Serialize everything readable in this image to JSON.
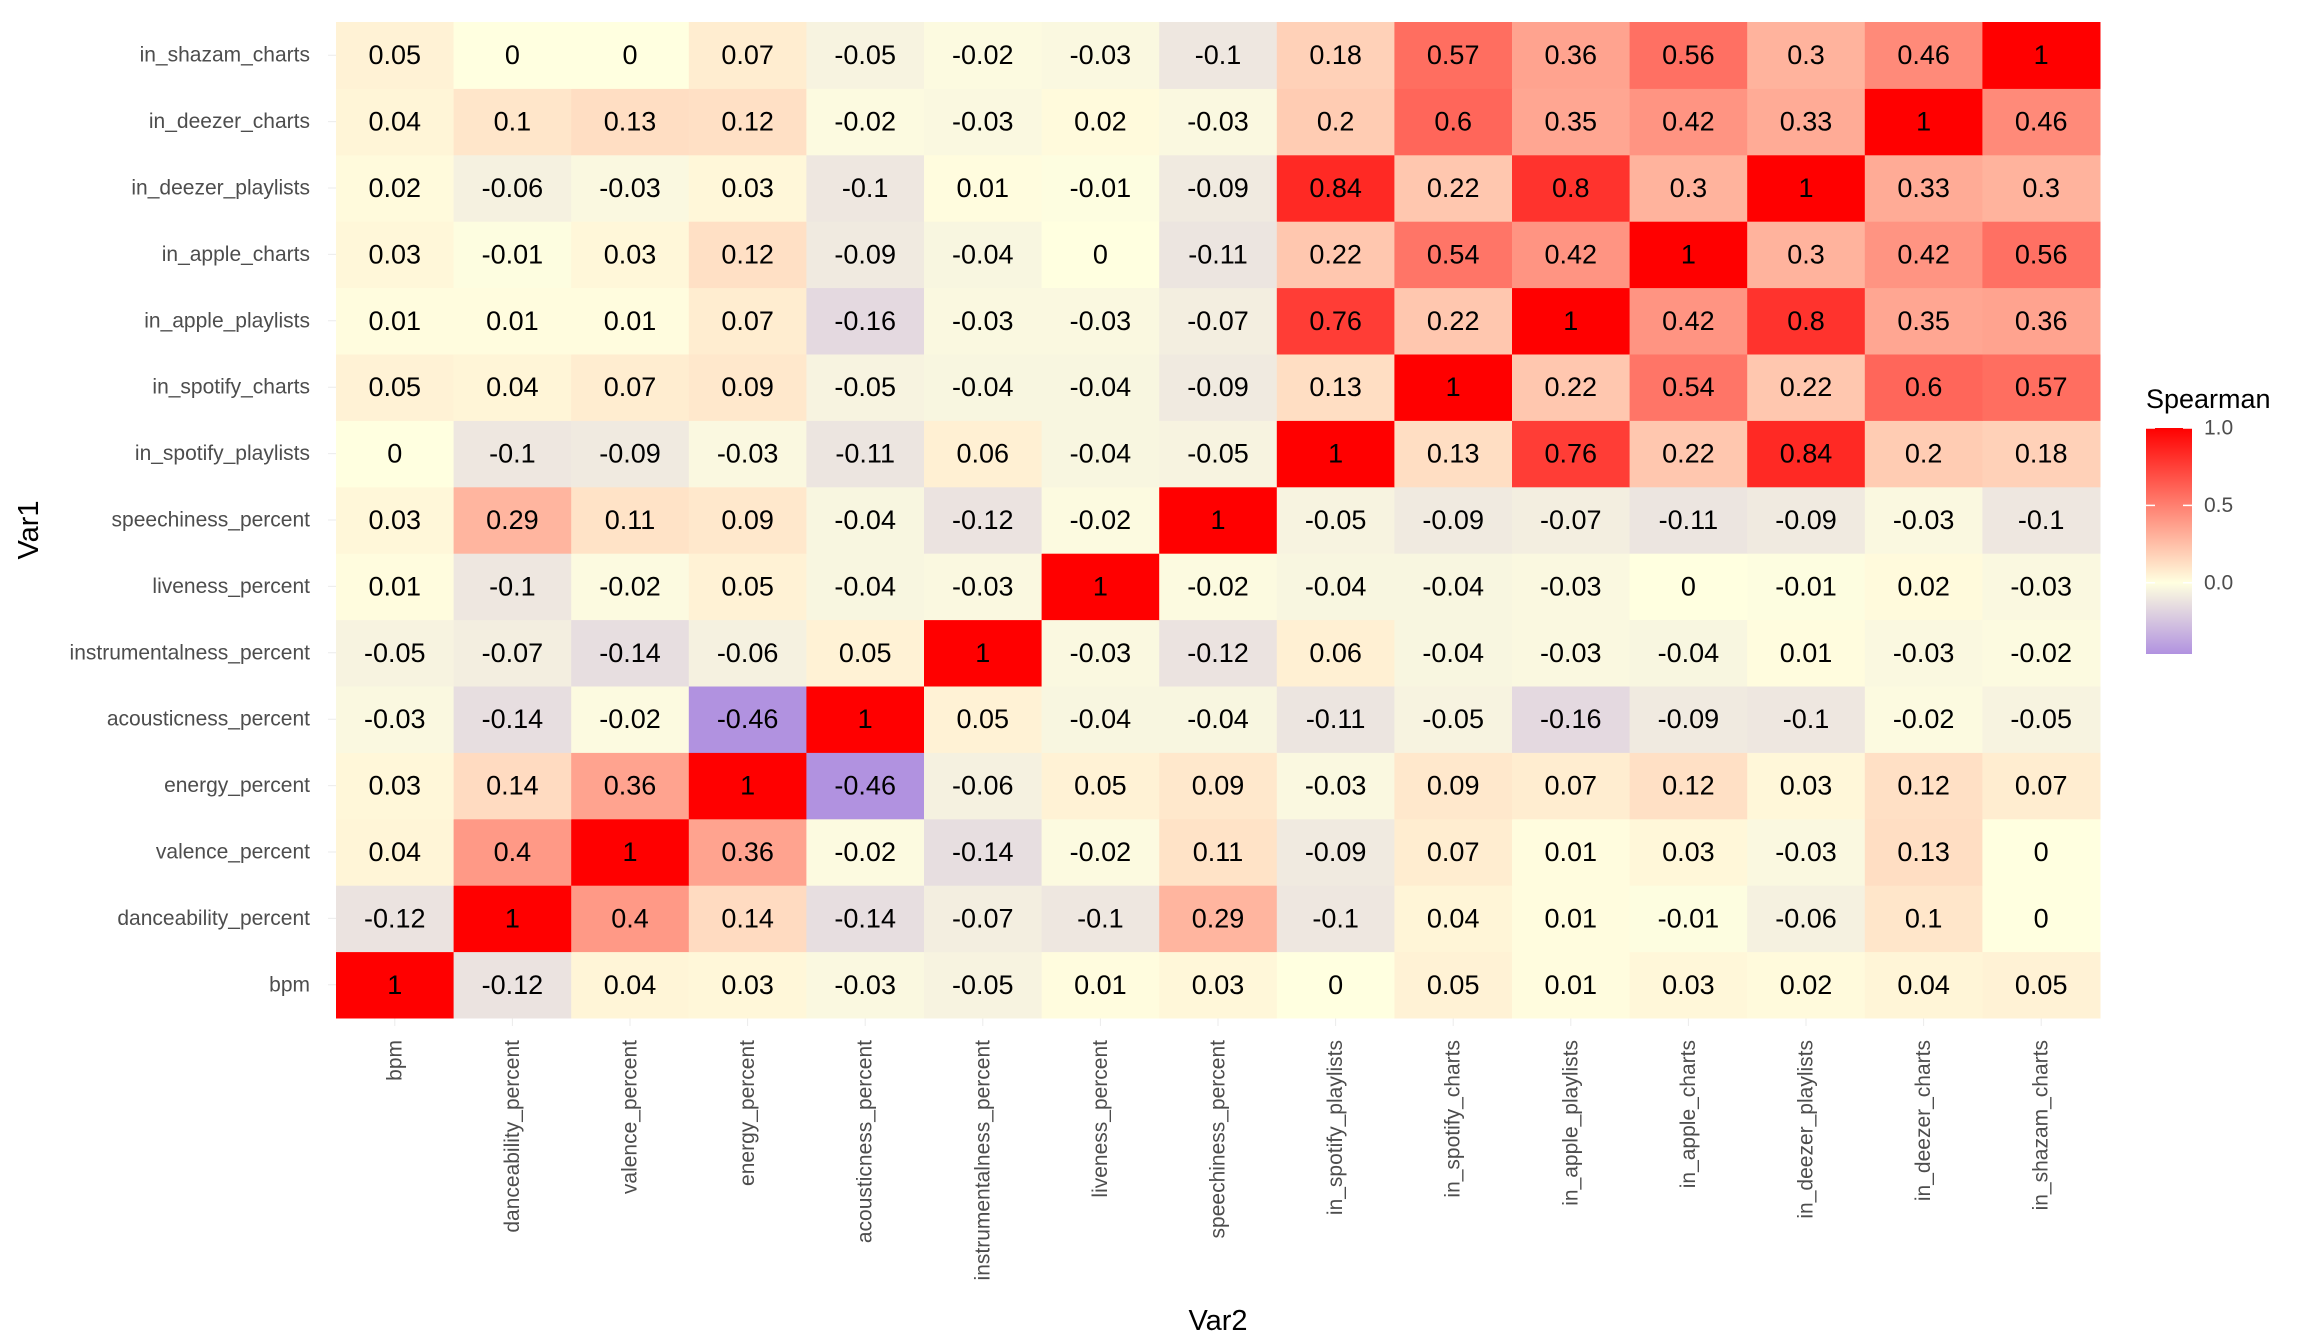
{
  "chart_data": {
    "type": "heatmap",
    "xlabel": "Var2",
    "ylabel": "Var1",
    "x_categories": [
      "bpm",
      "danceability_percent",
      "valence_percent",
      "energy_percent",
      "acousticness_percent",
      "instrumentalness_percent",
      "liveness_percent",
      "speechiness_percent",
      "in_spotify_playlists",
      "in_spotify_charts",
      "in_apple_playlists",
      "in_apple_charts",
      "in_deezer_playlists",
      "in_deezer_charts",
      "in_shazam_charts"
    ],
    "y_categories": [
      "bpm",
      "danceability_percent",
      "valence_percent",
      "energy_percent",
      "acousticness_percent",
      "instrumentalness_percent",
      "liveness_percent",
      "speechiness_percent",
      "in_spotify_playlists",
      "in_spotify_charts",
      "in_apple_playlists",
      "in_apple_charts",
      "in_deezer_playlists",
      "in_deezer_charts",
      "in_shazam_charts"
    ],
    "values": [
      [
        1,
        -0.12,
        0.04,
        0.03,
        -0.03,
        -0.05,
        0.01,
        0.03,
        0,
        0.05,
        0.01,
        0.03,
        0.02,
        0.04,
        0.05
      ],
      [
        -0.12,
        1,
        0.4,
        0.14,
        -0.14,
        -0.07,
        -0.1,
        0.29,
        -0.1,
        0.04,
        0.01,
        -0.01,
        -0.06,
        0.1,
        0
      ],
      [
        0.04,
        0.4,
        1,
        0.36,
        -0.02,
        -0.14,
        -0.02,
        0.11,
        -0.09,
        0.07,
        0.01,
        0.03,
        -0.03,
        0.13,
        0
      ],
      [
        0.03,
        0.14,
        0.36,
        1,
        -0.46,
        -0.06,
        0.05,
        0.09,
        -0.03,
        0.09,
        0.07,
        0.12,
        0.03,
        0.12,
        0.07
      ],
      [
        -0.03,
        -0.14,
        -0.02,
        -0.46,
        1,
        0.05,
        -0.04,
        -0.04,
        -0.11,
        -0.05,
        -0.16,
        -0.09,
        -0.1,
        -0.02,
        -0.05
      ],
      [
        -0.05,
        -0.07,
        -0.14,
        -0.06,
        0.05,
        1,
        -0.03,
        -0.12,
        0.06,
        -0.04,
        -0.03,
        -0.04,
        0.01,
        -0.03,
        -0.02
      ],
      [
        0.01,
        -0.1,
        -0.02,
        0.05,
        -0.04,
        -0.03,
        1,
        -0.02,
        -0.04,
        -0.04,
        -0.03,
        0,
        -0.01,
        0.02,
        -0.03
      ],
      [
        0.03,
        0.29,
        0.11,
        0.09,
        -0.04,
        -0.12,
        -0.02,
        1,
        -0.05,
        -0.09,
        -0.07,
        -0.11,
        -0.09,
        -0.03,
        -0.1
      ],
      [
        0,
        -0.1,
        -0.09,
        -0.03,
        -0.11,
        0.06,
        -0.04,
        -0.05,
        1,
        0.13,
        0.76,
        0.22,
        0.84,
        0.2,
        0.18
      ],
      [
        0.05,
        0.04,
        0.07,
        0.09,
        -0.05,
        -0.04,
        -0.04,
        -0.09,
        0.13,
        1,
        0.22,
        0.54,
        0.22,
        0.6,
        0.57
      ],
      [
        0.01,
        0.01,
        0.01,
        0.07,
        -0.16,
        -0.03,
        -0.03,
        -0.07,
        0.76,
        0.22,
        1,
        0.42,
        0.8,
        0.35,
        0.36
      ],
      [
        0.03,
        -0.01,
        0.03,
        0.12,
        -0.09,
        -0.04,
        0,
        -0.11,
        0.22,
        0.54,
        0.42,
        1,
        0.3,
        0.42,
        0.56
      ],
      [
        0.02,
        -0.06,
        -0.03,
        0.03,
        -0.1,
        0.01,
        -0.01,
        -0.09,
        0.84,
        0.22,
        0.8,
        0.3,
        1,
        0.33,
        0.3
      ],
      [
        0.04,
        0.1,
        0.13,
        0.12,
        -0.02,
        -0.03,
        0.02,
        -0.03,
        0.2,
        0.6,
        0.35,
        0.42,
        0.33,
        1,
        0.46
      ],
      [
        0.05,
        0,
        0,
        0.07,
        -0.05,
        -0.02,
        -0.03,
        -0.1,
        0.18,
        0.57,
        0.36,
        0.56,
        0.3,
        0.46,
        1
      ]
    ],
    "legend": {
      "title": "Spearman",
      "ticks": [
        1.0,
        0.5,
        0.0
      ],
      "tick_labels": [
        "1.0",
        "0.5",
        "0.0"
      ],
      "range": [
        -0.46,
        1
      ],
      "placement": "right"
    },
    "colors": {
      "low": "#b192e0",
      "mid": "#ffffe0",
      "high": "#ff0000"
    },
    "grid": true
  }
}
